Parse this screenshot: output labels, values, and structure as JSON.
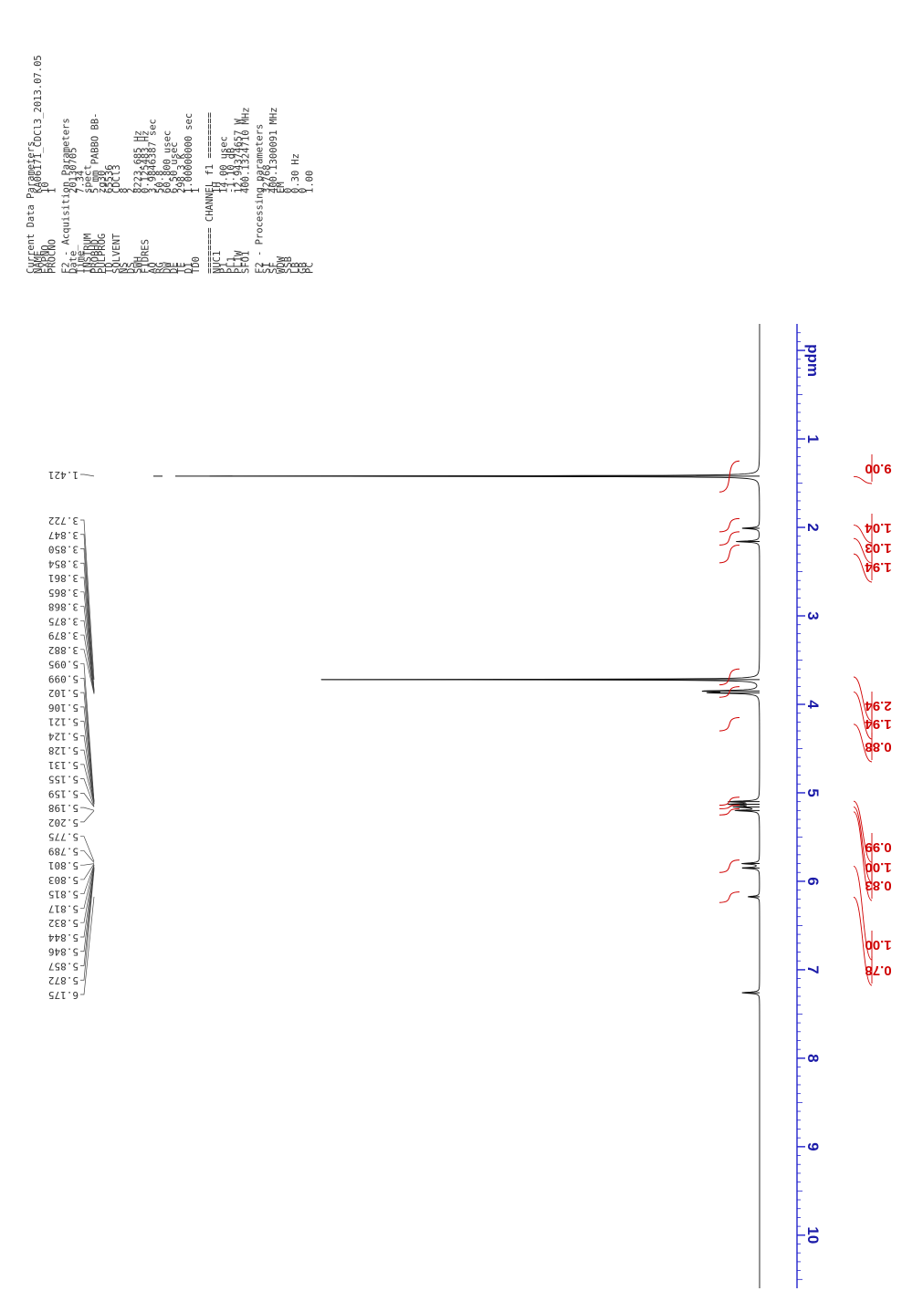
{
  "params": {
    "current_data": {
      "title": "Current Data Parameters",
      "rows": [
        {
          "key": "NAME",
          "value": "KA06171_CDCl3_2013.07.05"
        },
        {
          "key": "EXPNO",
          "value": "10"
        },
        {
          "key": "PROCNO",
          "value": "1"
        }
      ]
    },
    "acquisition": {
      "title": "F2 - Acquisition Parameters",
      "rows": [
        {
          "key": "Date_",
          "value": "20130705",
          "unit": ""
        },
        {
          "key": "Time",
          "value": "7.34",
          "unit": ""
        },
        {
          "key": "INSTRUM",
          "value": "spect",
          "unit": ""
        },
        {
          "key": "PROBHD",
          "value": "5 mm PABBO BB-",
          "unit": ""
        },
        {
          "key": "PULPROG",
          "value": "zg30",
          "unit": ""
        },
        {
          "key": "TD",
          "value": "65536",
          "unit": ""
        },
        {
          "key": "SOLVENT",
          "value": "CDCl3",
          "unit": ""
        },
        {
          "key": "NS",
          "value": "8",
          "unit": ""
        },
        {
          "key": "DS",
          "value": "2",
          "unit": ""
        },
        {
          "key": "SWH",
          "value": "8223.685",
          "unit": "Hz"
        },
        {
          "key": "FIDRES",
          "value": "0.125483",
          "unit": "Hz"
        },
        {
          "key": "AQ",
          "value": "3.9846387",
          "unit": "sec"
        },
        {
          "key": "RG",
          "value": "50.8",
          "unit": ""
        },
        {
          "key": "DW",
          "value": "60.800",
          "unit": "usec"
        },
        {
          "key": "DE",
          "value": "6.50",
          "unit": "usec"
        },
        {
          "key": "TE",
          "value": "298.3",
          "unit": "K"
        },
        {
          "key": "D1",
          "value": "1.00000000",
          "unit": "sec"
        },
        {
          "key": "TD0",
          "value": "1",
          "unit": ""
        }
      ]
    },
    "channel": {
      "title": "======== CHANNEL f1 ========",
      "rows": [
        {
          "key": "NUC1",
          "value": "1H",
          "unit": ""
        },
        {
          "key": "P1",
          "value": "14.00",
          "unit": "usec"
        },
        {
          "key": "PL1",
          "value": "-1.10",
          "unit": "dB"
        },
        {
          "key": "PL1W",
          "value": "12.94374657",
          "unit": "W"
        },
        {
          "key": "SFO1",
          "value": "400.1324710",
          "unit": "MHz"
        }
      ]
    },
    "processing": {
      "title": "F2 - Processing parameters",
      "rows": [
        {
          "key": "SI",
          "value": "32768",
          "unit": ""
        },
        {
          "key": "SF",
          "value": "400.1300091",
          "unit": "MHz"
        },
        {
          "key": "WDW",
          "value": "EM",
          "unit": ""
        },
        {
          "key": "SSB",
          "value": "0",
          "unit": ""
        },
        {
          "key": "LB",
          "value": "0.30",
          "unit": "Hz"
        },
        {
          "key": "GB",
          "value": "0",
          "unit": ""
        },
        {
          "key": "PC",
          "value": "1.00",
          "unit": ""
        }
      ]
    }
  },
  "chart_data": {
    "type": "line",
    "axis_label": "ppm",
    "x_range": [
      10.6,
      -0.3
    ],
    "x_reversed": true,
    "ticks": [
      "10",
      "9",
      "8",
      "7",
      "6",
      "5",
      "4",
      "3",
      "2",
      "1"
    ],
    "tick_values": [
      10,
      9,
      8,
      7,
      6,
      5,
      4,
      3,
      2,
      1
    ],
    "peak_labels": [
      "1.421",
      "3.722",
      "3.847",
      "3.850",
      "3.854",
      "3.861",
      "3.865",
      "3.868",
      "3.875",
      "3.879",
      "3.882",
      "5.095",
      "5.099",
      "5.102",
      "5.106",
      "5.121",
      "5.124",
      "5.128",
      "5.131",
      "5.155",
      "5.159",
      "5.198",
      "5.202",
      "5.775",
      "5.789",
      "5.801",
      "5.803",
      "5.815",
      "5.817",
      "5.832",
      "5.844",
      "5.846",
      "5.857",
      "5.872",
      "6.175"
    ],
    "peaks": [
      {
        "ppm": 1.421,
        "height": 1.0
      },
      {
        "ppm": 3.72,
        "height": 0.75
      },
      {
        "ppm": 3.85,
        "height": 0.09
      },
      {
        "ppm": 3.87,
        "height": 0.08
      },
      {
        "ppm": 2.01,
        "height": 0.03
      },
      {
        "ppm": 2.16,
        "height": 0.04
      },
      {
        "ppm": 5.1,
        "height": 0.05
      },
      {
        "ppm": 5.13,
        "height": 0.05
      },
      {
        "ppm": 5.16,
        "height": 0.04
      },
      {
        "ppm": 5.2,
        "height": 0.04
      },
      {
        "ppm": 5.8,
        "height": 0.03
      },
      {
        "ppm": 5.85,
        "height": 0.03
      },
      {
        "ppm": 6.175,
        "height": 0.02
      },
      {
        "ppm": 7.26,
        "height": 0.03
      }
    ],
    "integrals": [
      {
        "label": "9.00",
        "from": 1.25,
        "to": 1.6
      },
      {
        "label": "1.04",
        "from": 1.9,
        "to": 2.05
      },
      {
        "label": "1.03",
        "from": 2.05,
        "to": 2.2
      },
      {
        "label": "1.94",
        "from": 2.2,
        "to": 2.4
      },
      {
        "label": "2.94",
        "from": 3.6,
        "to": 3.78
      },
      {
        "label": "1.94",
        "from": 3.8,
        "to": 3.92
      },
      {
        "label": "0.88",
        "from": 4.15,
        "to": 4.3
      },
      {
        "label": "0.99",
        "from": 5.05,
        "to": 5.14
      },
      {
        "label": "1.00",
        "from": 5.14,
        "to": 5.18
      },
      {
        "label": "0.83",
        "from": 5.18,
        "to": 5.25
      },
      {
        "label": "1.00",
        "from": 5.76,
        "to": 5.9
      },
      {
        "label": "0.78",
        "from": 6.12,
        "to": 6.24
      }
    ]
  }
}
